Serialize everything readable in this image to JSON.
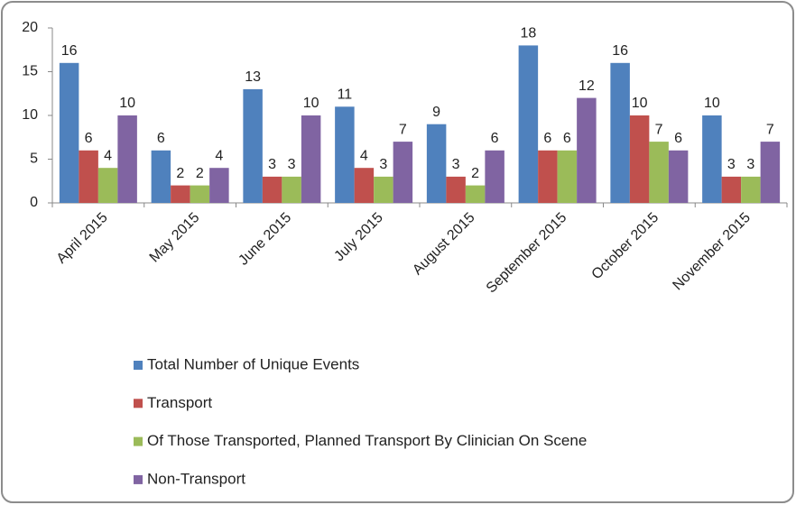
{
  "chart_data": {
    "type": "bar",
    "categories": [
      "April 2015",
      "May 2015",
      "June 2015",
      "July 2015",
      "August 2015",
      "September 2015",
      "October 2015",
      "November 2015"
    ],
    "series": [
      {
        "name": "Total Number of Unique Events",
        "color": "#4f81bd",
        "values": [
          16,
          6,
          13,
          11,
          9,
          18,
          16,
          10
        ]
      },
      {
        "name": "Transport",
        "color": "#c0504d",
        "values": [
          6,
          2,
          3,
          4,
          3,
          6,
          10,
          3
        ]
      },
      {
        "name": "Of Those Transported, Planned Transport By Clinician On Scene",
        "color": "#9bbb59",
        "values": [
          4,
          2,
          3,
          3,
          2,
          6,
          7,
          3
        ]
      },
      {
        "name": "Non-Transport",
        "color": "#8064a2",
        "values": [
          10,
          4,
          10,
          7,
          6,
          12,
          6,
          7
        ]
      }
    ],
    "ylim": [
      0,
      20
    ],
    "yticks": [
      0,
      5,
      10,
      15,
      20
    ],
    "grid": false,
    "legend": "bottom"
  }
}
